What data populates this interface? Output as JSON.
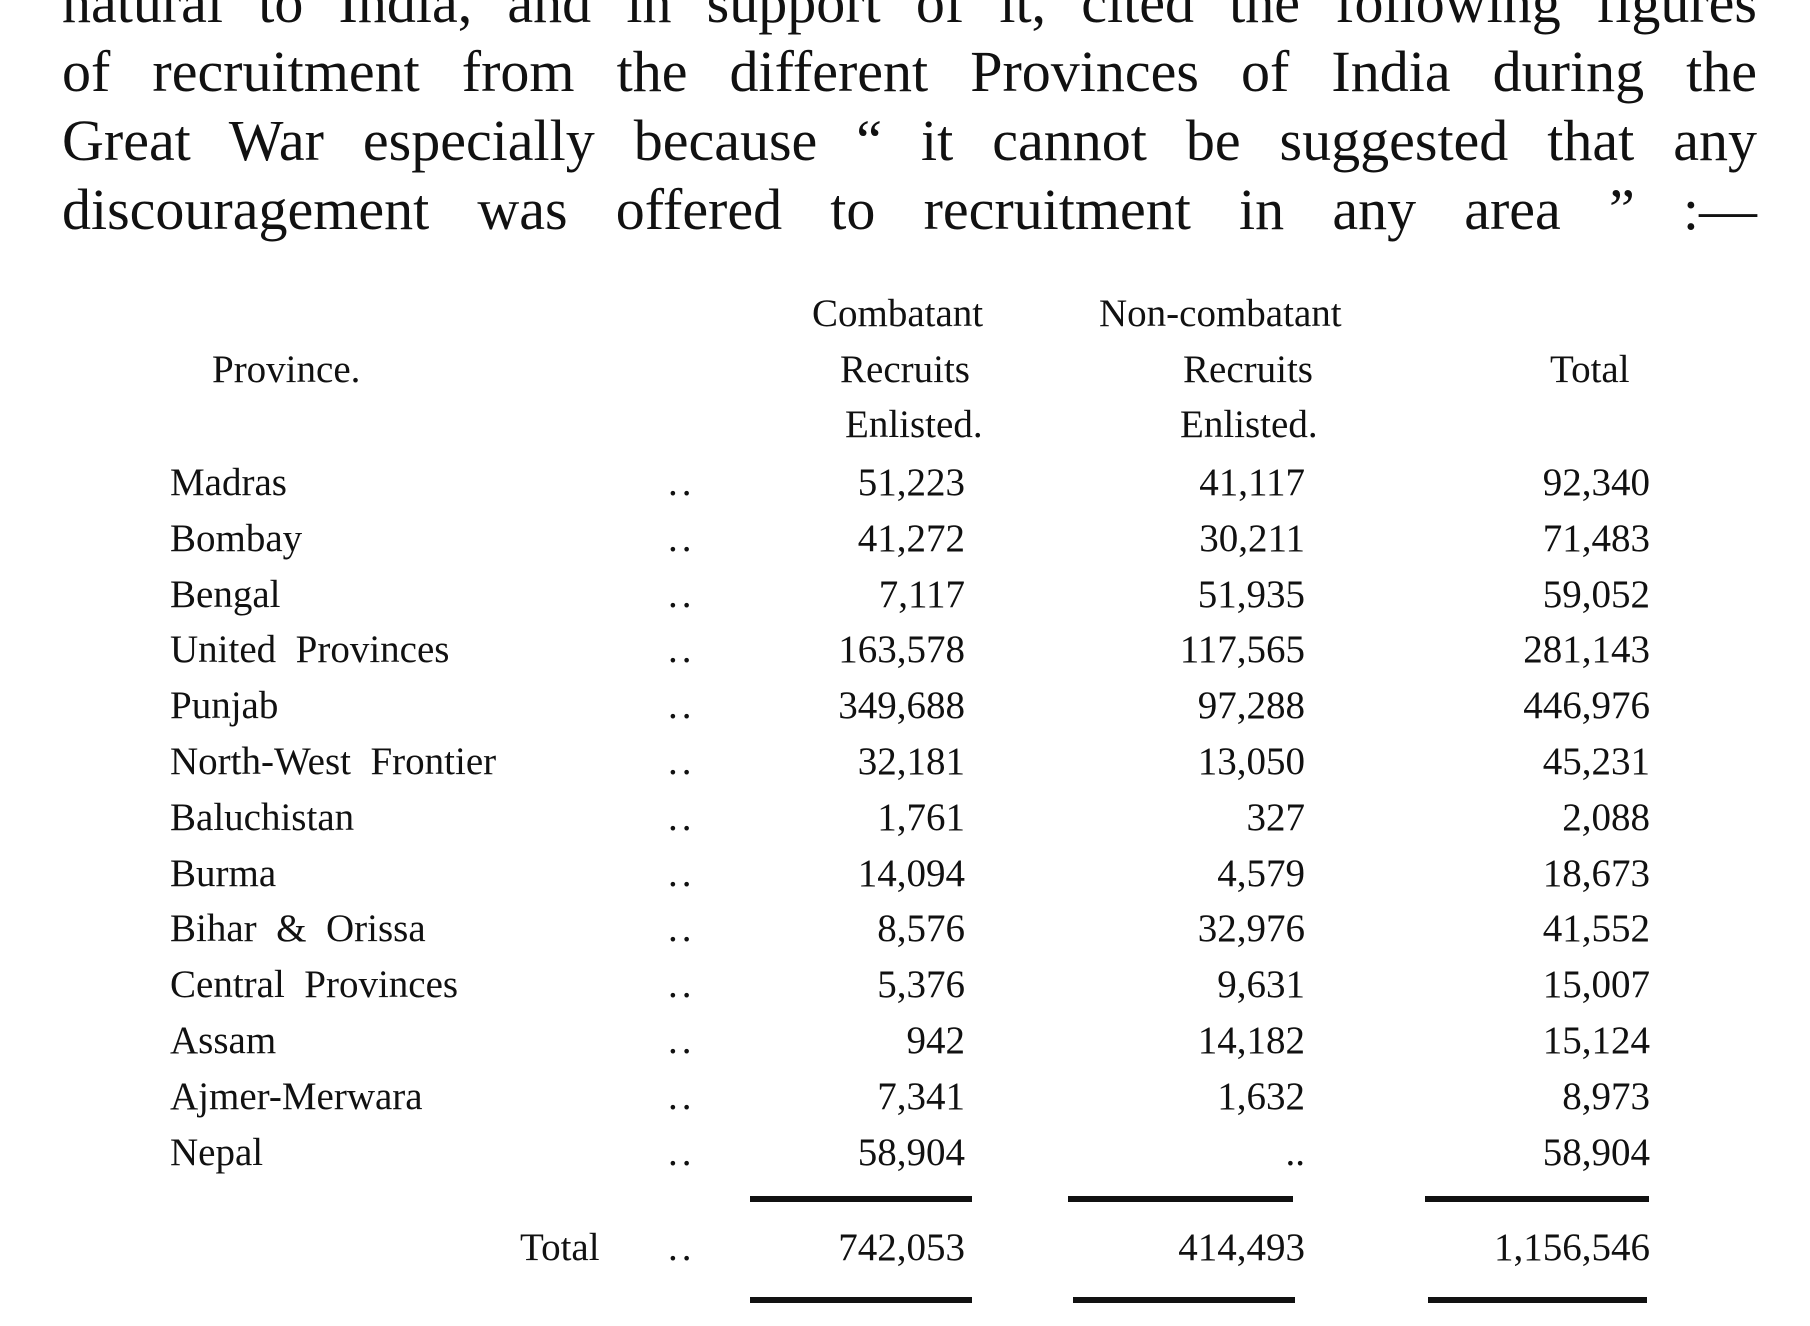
{
  "paragraph": {
    "lines": [
      "natural to India, and in support of it, cited the following figures",
      "of recruitment from the different Provinces of India during the",
      "Great War especially because “ it cannot be suggested that any",
      "discouragement was offered to recruitment in any area ” :—"
    ]
  },
  "table": {
    "headers": {
      "province": "Province.",
      "combatant": [
        "Combatant",
        "Recruits",
        "Enlisted."
      ],
      "noncombatant": [
        "Non-combatant",
        "Recruits",
        "Enlisted."
      ],
      "total": "Total"
    },
    "leader": "..",
    "rows": [
      {
        "province": "Madras",
        "combatant": "51,223",
        "noncombatant": "41,117",
        "total": "92,340"
      },
      {
        "province": "Bombay",
        "combatant": "41,272",
        "noncombatant": "30,211",
        "total": "71,483"
      },
      {
        "province": "Bengal",
        "combatant": "7,117",
        "noncombatant": "51,935",
        "total": "59,052"
      },
      {
        "province": "United  Provinces",
        "combatant": "163,578",
        "noncombatant": "117,565",
        "total": "281,143"
      },
      {
        "province": "Punjab",
        "combatant": "349,688",
        "noncombatant": "97,288",
        "total": "446,976"
      },
      {
        "province": "North-West  Frontier",
        "combatant": "32,181",
        "noncombatant": "13,050",
        "total": "45,231"
      },
      {
        "province": "Baluchistan",
        "combatant": "1,761",
        "noncombatant": "327",
        "total": "2,088"
      },
      {
        "province": "Burma",
        "combatant": "14,094",
        "noncombatant": "4,579",
        "total": "18,673"
      },
      {
        "province": "Bihar  &  Orissa",
        "combatant": "8,576",
        "noncombatant": "32,976",
        "total": "41,552"
      },
      {
        "province": "Central  Provinces",
        "combatant": "5,376",
        "noncombatant": "9,631",
        "total": "15,007"
      },
      {
        "province": "Assam",
        "combatant": "942",
        "noncombatant": "14,182",
        "total": "15,124"
      },
      {
        "province": "Ajmer-Merwara",
        "combatant": "7,341",
        "noncombatant": "1,632",
        "total": "8,973"
      },
      {
        "province": "Nepal",
        "combatant": "58,904",
        "noncombatant": "..",
        "total": "58,904"
      }
    ],
    "total_row": {
      "label": "Total",
      "combatant": "742,053",
      "noncombatant": "414,493",
      "total": "1,156,546"
    }
  }
}
